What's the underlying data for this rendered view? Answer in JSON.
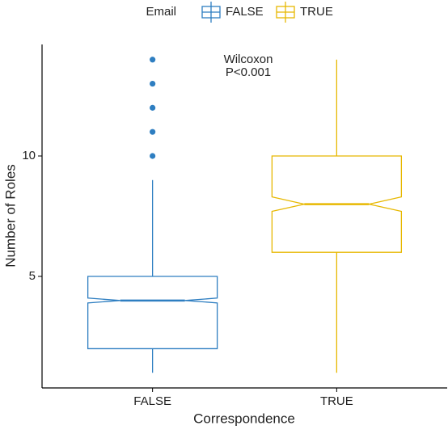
{
  "chart_data": {
    "type": "boxplot",
    "x_label": "Correspondence",
    "y_label": "Number of Roles",
    "legend_title": "Email",
    "legend_position": "top",
    "annotation": [
      "Wilcoxon",
      "P<0.001"
    ],
    "categories": [
      "FALSE",
      "TRUE"
    ],
    "series": [
      {
        "name": "FALSE",
        "color": "#2E7EC1",
        "whisker_low": 1,
        "q1": 2,
        "notch_low": 3.9,
        "median": 4,
        "notch_high": 4.1,
        "q3": 5,
        "whisker_high": 9,
        "outliers": [
          10,
          11,
          12,
          13,
          14
        ]
      },
      {
        "name": "TRUE",
        "color": "#E7B800",
        "whisker_low": 1,
        "q1": 6,
        "notch_low": 7.7,
        "median": 8,
        "notch_high": 8.3,
        "q3": 10,
        "whisker_high": 14,
        "outliers": []
      }
    ],
    "ylim": [
      0.37,
      14.63
    ],
    "yticks": [
      5,
      10
    ],
    "grid": false
  }
}
